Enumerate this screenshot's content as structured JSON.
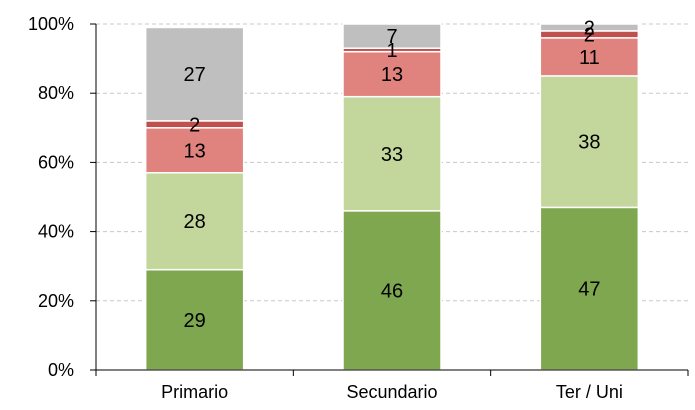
{
  "chart_data": {
    "type": "bar",
    "stacked": true,
    "categories": [
      "Primario",
      "Secundario",
      "Ter / Uni"
    ],
    "series": [
      {
        "values": [
          29,
          46,
          47
        ],
        "color": "#7ea74f",
        "label_color": "#000000"
      },
      {
        "values": [
          28,
          33,
          38
        ],
        "color": "#c3d69b",
        "label_color": "#000000"
      },
      {
        "values": [
          13,
          13,
          11
        ],
        "color": "#e0827e",
        "label_color": "#000000"
      },
      {
        "values": [
          2,
          1,
          2
        ],
        "color": "#c0504d",
        "label_color": "#000000"
      },
      {
        "values": [
          27,
          7,
          2
        ],
        "color": "#bfbfbf",
        "label_color": "#000000"
      }
    ],
    "yticks": [
      "0%",
      "20%",
      "40%",
      "60%",
      "80%",
      "100%"
    ],
    "ylim": [
      0,
      100
    ],
    "grid": true,
    "legend": "none",
    "title": "",
    "xlabel": "",
    "ylabel": ""
  }
}
